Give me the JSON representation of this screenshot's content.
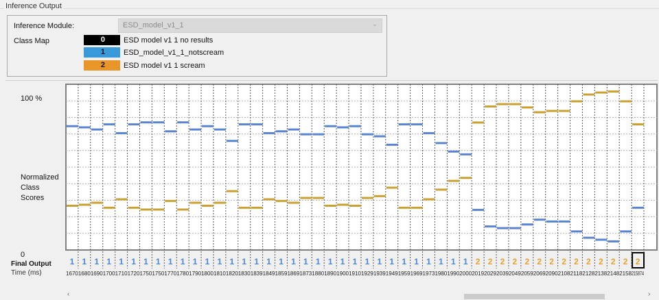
{
  "group_title": "Inference Output",
  "module": {
    "label": "Inference Module:",
    "value": "ESD_model_v1_1"
  },
  "class_map": {
    "label": "Class Map",
    "classes": [
      {
        "id": "0",
        "name": "ESD model v1 1 no results",
        "color": "#000000",
        "text_color": "#ffffff"
      },
      {
        "id": "1",
        "name": "ESD_model_v1_1_notscream",
        "color": "#3a9ad9",
        "text_color": "#000000"
      },
      {
        "id": "2",
        "name": "ESD model v1 1 scream",
        "color": "#e8962a",
        "text_color": "#000000"
      }
    ]
  },
  "axis": {
    "top_label": "100 %",
    "ylabel": "Normalized Class Scores",
    "bottom_label": "0",
    "final_output_label": "Final Output",
    "time_label": "Time (ms)"
  },
  "chart_data": {
    "type": "line",
    "ylabel": "Normalized Class Scores",
    "ylim": [
      0,
      1
    ],
    "grid": true,
    "selected_index": 46,
    "x": [
      "1670",
      "1680",
      "1690",
      "1700",
      "1710",
      "1720",
      "1750",
      "1750",
      "1770",
      "1780",
      "1790",
      "1800",
      "1810",
      "1820",
      "1830",
      "1839",
      "1849",
      "1859",
      "1869",
      "1873",
      "1880",
      "1890",
      "1900",
      "1910",
      "1929",
      "1939",
      "1949",
      "1959",
      "1969",
      "1973",
      "1980",
      "1990",
      "2000",
      "2019",
      "2029",
      "2039",
      "2049",
      "2059",
      "2069",
      "2090",
      "2108",
      "2118",
      "2128",
      "2138",
      "2148",
      "2158",
      "215874"
    ],
    "final_output": [
      1,
      1,
      1,
      1,
      1,
      1,
      1,
      1,
      1,
      1,
      1,
      1,
      1,
      1,
      1,
      1,
      1,
      1,
      1,
      1,
      1,
      1,
      1,
      1,
      1,
      1,
      1,
      1,
      1,
      1,
      1,
      1,
      1,
      2,
      2,
      2,
      2,
      2,
      2,
      2,
      2,
      2,
      2,
      2,
      2,
      2,
      2
    ],
    "series": [
      {
        "class": "1",
        "color": "#5b84d0",
        "values": [
          0.747,
          0.74,
          0.727,
          0.758,
          0.705,
          0.758,
          0.77,
          0.77,
          0.716,
          0.77,
          0.727,
          0.747,
          0.727,
          0.658,
          0.758,
          0.758,
          0.705,
          0.716,
          0.727,
          0.698,
          0.698,
          0.747,
          0.74,
          0.747,
          0.698,
          0.686,
          0.635,
          0.758,
          0.758,
          0.705,
          0.645,
          0.594,
          0.577,
          0.242,
          0.142,
          0.132,
          0.132,
          0.154,
          0.183,
          0.172,
          0.172,
          0.112,
          0.074,
          0.062,
          0.052,
          0.112,
          0.255
        ]
      },
      {
        "class": "2",
        "color": "#c9a032",
        "values": [
          0.267,
          0.273,
          0.285,
          0.255,
          0.306,
          0.255,
          0.244,
          0.244,
          0.296,
          0.244,
          0.285,
          0.267,
          0.285,
          0.355,
          0.255,
          0.255,
          0.306,
          0.296,
          0.285,
          0.314,
          0.314,
          0.267,
          0.273,
          0.267,
          0.314,
          0.325,
          0.376,
          0.255,
          0.255,
          0.306,
          0.364,
          0.417,
          0.435,
          0.769,
          0.866,
          0.88,
          0.88,
          0.86,
          0.831,
          0.839,
          0.839,
          0.897,
          0.938,
          0.95,
          0.956,
          0.897,
          0.758
        ]
      }
    ]
  }
}
